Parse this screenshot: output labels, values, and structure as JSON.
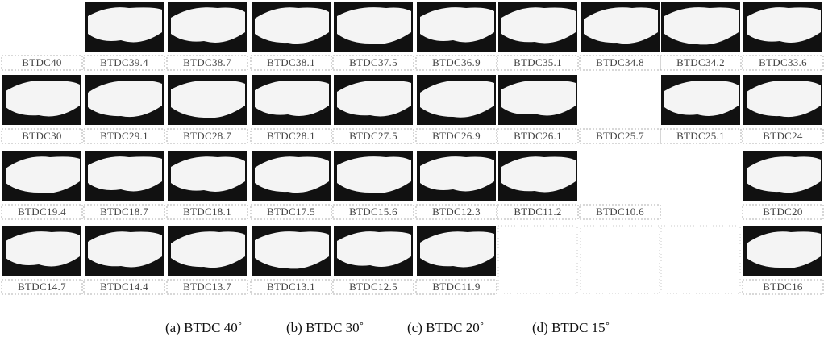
{
  "rows": [
    {
      "labels": [
        "BTDC40",
        "BTDC39.4",
        "BTDC38.7",
        "BTDC38.1",
        "BTDC37.5",
        "BTDC36.9",
        "BTDC35.1",
        "BTDC34.8",
        "BTDC34.2",
        "BTDC33.6"
      ]
    },
    {
      "labels": [
        "BTDC30",
        "BTDC29.1",
        "BTDC28.7",
        "BTDC28.1",
        "BTDC27.5",
        "BTDC26.9",
        "BTDC26.1",
        "BTDC25.7",
        "BTDC25.1",
        "BTDC24"
      ]
    },
    {
      "labels": [
        "BTDC19.4",
        "BTDC18.7",
        "BTDC18.1",
        "BTDC17.5",
        "BTDC15.6",
        "BTDC12.3",
        "BTDC11.2",
        "BTDC10.6",
        "BTDC20"
      ]
    },
    {
      "labels": [
        "BTDC14.7",
        "BTDC14.4",
        "BTDC13.7",
        "BTDC13.1",
        "BTDC12.5",
        "BTDC11.9",
        "BTDC16"
      ]
    }
  ],
  "captions": [
    "(a) BTDC 40˚",
    "(b) BTDC 30˚",
    "(c) BTDC 20˚",
    "(d) BTDC 15˚"
  ]
}
